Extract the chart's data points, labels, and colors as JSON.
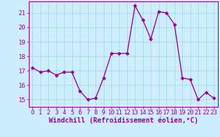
{
  "x": [
    0,
    1,
    2,
    3,
    4,
    5,
    6,
    7,
    8,
    9,
    10,
    11,
    12,
    13,
    14,
    15,
    16,
    17,
    18,
    19,
    20,
    21,
    22,
    23
  ],
  "y": [
    17.2,
    16.9,
    17.0,
    16.7,
    16.9,
    16.9,
    15.6,
    15.0,
    15.1,
    16.5,
    18.2,
    18.2,
    18.2,
    21.5,
    20.5,
    19.2,
    21.1,
    21.0,
    20.2,
    16.5,
    16.4,
    15.0,
    15.5,
    15.1
  ],
  "line_color": "#990099",
  "marker": "D",
  "marker_size": 2.5,
  "line_width": 1.0,
  "xlabel": "Windchill (Refroidissement éolien,°C)",
  "xlabel_fontsize": 7,
  "yticks": [
    15,
    16,
    17,
    18,
    19,
    20,
    21
  ],
  "xticks": [
    0,
    1,
    2,
    3,
    4,
    5,
    6,
    7,
    8,
    9,
    10,
    11,
    12,
    13,
    14,
    15,
    16,
    17,
    18,
    19,
    20,
    21,
    22,
    23
  ],
  "xlim": [
    -0.5,
    23.5
  ],
  "ylim": [
    14.5,
    21.8
  ],
  "bg_color": "#cceeff",
  "grid_color": "#aadddd",
  "tick_color": "#990099",
  "tick_fontsize": 6.5,
  "spine_color": "#990099"
}
